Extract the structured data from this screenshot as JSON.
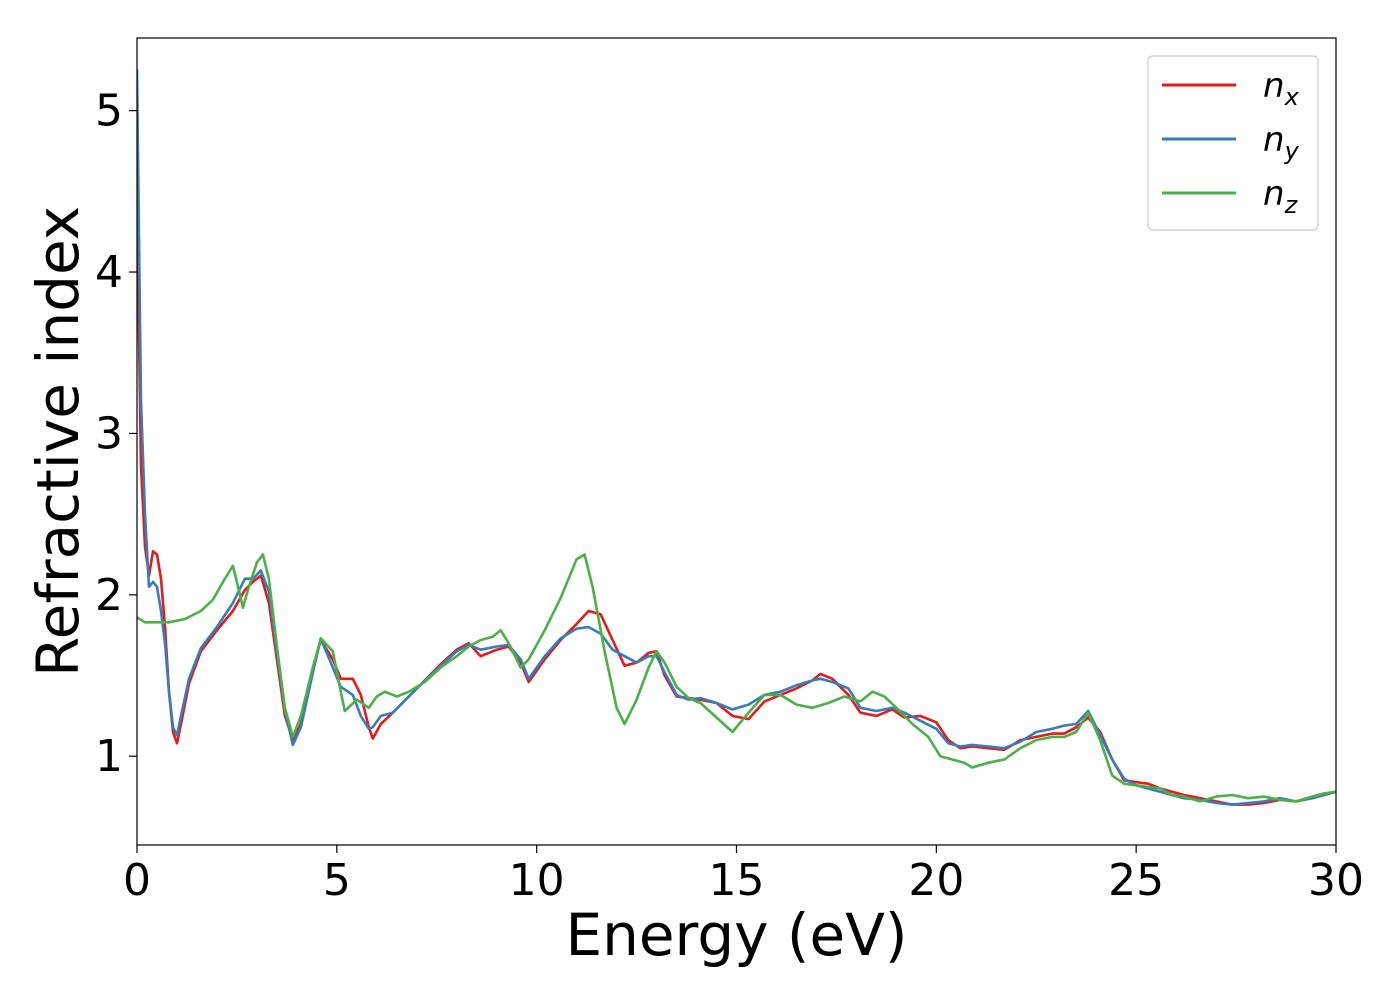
{
  "chart_data": {
    "type": "line",
    "title": "",
    "xlabel": "Energy (eV)",
    "ylabel": "Refractive index",
    "xlim": [
      0,
      30
    ],
    "ylim": [
      0.45,
      5.45
    ],
    "xticks": [
      0,
      5,
      10,
      15,
      20,
      25,
      30
    ],
    "xtick_labels": [
      "0",
      "5",
      "10",
      "15",
      "20",
      "25",
      "30"
    ],
    "yticks": [
      1,
      2,
      3,
      4,
      5
    ],
    "ytick_labels": [
      "1",
      "2",
      "3",
      "4",
      "5"
    ],
    "grid": false,
    "legend_position": "top-right",
    "series": [
      {
        "name": "n_x",
        "legend_main": "n",
        "legend_sub": "x",
        "color": "#e41a1c",
        "x": [
          0,
          0.05,
          0.1,
          0.2,
          0.3,
          0.4,
          0.5,
          0.6,
          0.7,
          0.8,
          0.9,
          1.0,
          1.1,
          1.3,
          1.6,
          2.0,
          2.4,
          2.7,
          2.9,
          3.1,
          3.3,
          3.5,
          3.7,
          3.9,
          4.1,
          4.4,
          4.6,
          4.9,
          5.1,
          5.4,
          5.6,
          5.8,
          5.9,
          6.1,
          6.4,
          6.8,
          7.2,
          7.6,
          8.0,
          8.3,
          8.6,
          9.0,
          9.3,
          9.6,
          9.8,
          10.2,
          10.6,
          11.0,
          11.3,
          11.6,
          11.9,
          12.2,
          12.5,
          12.8,
          13.0,
          13.2,
          13.5,
          13.8,
          14.1,
          14.5,
          14.9,
          15.3,
          15.7,
          16.1,
          16.5,
          16.9,
          17.1,
          17.4,
          17.8,
          18.1,
          18.5,
          18.9,
          19.2,
          19.6,
          20.0,
          20.3,
          20.6,
          20.9,
          21.3,
          21.7,
          22.1,
          22.5,
          22.9,
          23.2,
          23.5,
          23.8,
          24.1,
          24.4,
          24.7,
          25.0,
          25.3,
          25.6,
          25.9,
          26.2,
          26.6,
          27.0,
          27.4,
          27.8,
          28.2,
          28.6,
          29.0,
          29.4,
          29.7,
          30.0
        ],
        "y": [
          4.5,
          3.6,
          2.8,
          2.3,
          2.12,
          2.27,
          2.25,
          2.1,
          1.8,
          1.4,
          1.15,
          1.08,
          1.2,
          1.45,
          1.65,
          1.78,
          1.9,
          2.03,
          2.08,
          2.12,
          1.95,
          1.6,
          1.25,
          1.1,
          1.2,
          1.55,
          1.72,
          1.6,
          1.48,
          1.48,
          1.38,
          1.18,
          1.11,
          1.2,
          1.27,
          1.37,
          1.47,
          1.57,
          1.66,
          1.7,
          1.62,
          1.66,
          1.68,
          1.58,
          1.46,
          1.6,
          1.72,
          1.82,
          1.9,
          1.88,
          1.72,
          1.56,
          1.58,
          1.64,
          1.65,
          1.5,
          1.37,
          1.36,
          1.35,
          1.33,
          1.25,
          1.23,
          1.34,
          1.38,
          1.42,
          1.47,
          1.51,
          1.48,
          1.38,
          1.27,
          1.25,
          1.29,
          1.24,
          1.25,
          1.21,
          1.1,
          1.05,
          1.06,
          1.05,
          1.04,
          1.1,
          1.12,
          1.14,
          1.14,
          1.18,
          1.24,
          1.15,
          0.98,
          0.85,
          0.84,
          0.83,
          0.8,
          0.78,
          0.76,
          0.74,
          0.72,
          0.7,
          0.7,
          0.71,
          0.73,
          0.72,
          0.74,
          0.76,
          0.78
        ]
      },
      {
        "name": "n_y",
        "legend_main": "n",
        "legend_sub": "y",
        "color": "#377eb8",
        "x": [
          0,
          0.05,
          0.1,
          0.2,
          0.3,
          0.4,
          0.5,
          0.6,
          0.7,
          0.8,
          0.9,
          1.0,
          1.1,
          1.3,
          1.6,
          2.0,
          2.4,
          2.7,
          2.9,
          3.1,
          3.3,
          3.5,
          3.7,
          3.9,
          4.1,
          4.4,
          4.6,
          4.9,
          5.1,
          5.4,
          5.6,
          5.8,
          5.9,
          6.1,
          6.4,
          6.8,
          7.2,
          7.6,
          8.0,
          8.3,
          8.6,
          9.0,
          9.3,
          9.6,
          9.8,
          10.2,
          10.6,
          11.0,
          11.3,
          11.6,
          11.9,
          12.2,
          12.5,
          12.8,
          13.0,
          13.2,
          13.5,
          13.8,
          14.1,
          14.5,
          14.9,
          15.3,
          15.7,
          16.1,
          16.5,
          16.9,
          17.1,
          17.4,
          17.8,
          18.1,
          18.5,
          18.9,
          19.2,
          19.6,
          20.0,
          20.3,
          20.6,
          20.9,
          21.3,
          21.7,
          22.1,
          22.5,
          22.9,
          23.2,
          23.5,
          23.8,
          24.1,
          24.4,
          24.7,
          25.0,
          25.3,
          25.6,
          25.9,
          26.2,
          26.6,
          27.0,
          27.4,
          27.8,
          28.2,
          28.6,
          29.0,
          29.4,
          29.7,
          30.0
        ],
        "y": [
          5.25,
          4.2,
          3.2,
          2.5,
          2.05,
          2.08,
          2.05,
          1.9,
          1.7,
          1.4,
          1.18,
          1.13,
          1.25,
          1.48,
          1.67,
          1.8,
          1.95,
          2.1,
          2.1,
          2.15,
          2.02,
          1.65,
          1.28,
          1.07,
          1.18,
          1.52,
          1.73,
          1.55,
          1.43,
          1.38,
          1.25,
          1.17,
          1.18,
          1.25,
          1.27,
          1.37,
          1.47,
          1.56,
          1.65,
          1.69,
          1.66,
          1.68,
          1.69,
          1.6,
          1.48,
          1.62,
          1.73,
          1.79,
          1.8,
          1.76,
          1.66,
          1.62,
          1.58,
          1.62,
          1.62,
          1.52,
          1.38,
          1.35,
          1.36,
          1.33,
          1.29,
          1.32,
          1.38,
          1.4,
          1.44,
          1.47,
          1.48,
          1.46,
          1.42,
          1.3,
          1.28,
          1.3,
          1.27,
          1.22,
          1.17,
          1.08,
          1.06,
          1.07,
          1.06,
          1.05,
          1.09,
          1.15,
          1.17,
          1.19,
          1.2,
          1.28,
          1.13,
          0.98,
          0.86,
          0.82,
          0.8,
          0.78,
          0.76,
          0.74,
          0.73,
          0.71,
          0.7,
          0.71,
          0.72,
          0.74,
          0.72,
          0.74,
          0.76,
          0.78
        ]
      },
      {
        "name": "n_z",
        "legend_main": "n",
        "legend_sub": "z",
        "color": "#4daf4a",
        "x": [
          0,
          0.2,
          0.4,
          0.8,
          1.2,
          1.6,
          1.9,
          2.2,
          2.4,
          2.5,
          2.65,
          2.8,
          3.0,
          3.15,
          3.3,
          3.5,
          3.7,
          3.9,
          4.1,
          4.4,
          4.6,
          4.9,
          5.1,
          5.2,
          5.5,
          5.8,
          6.0,
          6.2,
          6.5,
          6.8,
          7.2,
          7.6,
          8.0,
          8.3,
          8.6,
          8.9,
          9.1,
          9.3,
          9.6,
          9.8,
          10.2,
          10.6,
          11.0,
          11.2,
          11.4,
          11.7,
          12.0,
          12.2,
          12.5,
          12.8,
          13.0,
          13.2,
          13.5,
          13.8,
          14.1,
          14.5,
          14.9,
          15.3,
          15.7,
          16.1,
          16.5,
          16.9,
          17.3,
          17.7,
          18.1,
          18.4,
          18.7,
          19.0,
          19.4,
          19.8,
          20.1,
          20.4,
          20.7,
          20.9,
          21.3,
          21.7,
          22.1,
          22.5,
          22.9,
          23.2,
          23.5,
          23.8,
          24.1,
          24.4,
          24.7,
          25.0,
          25.3,
          25.6,
          25.9,
          26.2,
          26.6,
          27.0,
          27.4,
          27.8,
          28.2,
          28.6,
          29.0,
          29.4,
          29.7,
          30.0
        ],
        "y": [
          1.86,
          1.83,
          1.83,
          1.83,
          1.85,
          1.9,
          1.97,
          2.1,
          2.18,
          2.08,
          1.92,
          2.05,
          2.2,
          2.25,
          2.1,
          1.68,
          1.3,
          1.12,
          1.25,
          1.55,
          1.73,
          1.65,
          1.4,
          1.28,
          1.35,
          1.3,
          1.37,
          1.4,
          1.37,
          1.4,
          1.46,
          1.55,
          1.62,
          1.68,
          1.72,
          1.74,
          1.78,
          1.7,
          1.55,
          1.6,
          1.78,
          1.98,
          2.22,
          2.25,
          2.05,
          1.65,
          1.3,
          1.2,
          1.35,
          1.55,
          1.65,
          1.58,
          1.43,
          1.36,
          1.33,
          1.24,
          1.15,
          1.27,
          1.38,
          1.38,
          1.32,
          1.3,
          1.33,
          1.37,
          1.34,
          1.4,
          1.37,
          1.3,
          1.2,
          1.12,
          1.0,
          0.98,
          0.96,
          0.93,
          0.96,
          0.98,
          1.05,
          1.1,
          1.12,
          1.12,
          1.15,
          1.27,
          1.1,
          0.88,
          0.83,
          0.82,
          0.81,
          0.8,
          0.76,
          0.75,
          0.72,
          0.75,
          0.76,
          0.74,
          0.75,
          0.73,
          0.72,
          0.75,
          0.77,
          0.78
        ]
      }
    ]
  }
}
